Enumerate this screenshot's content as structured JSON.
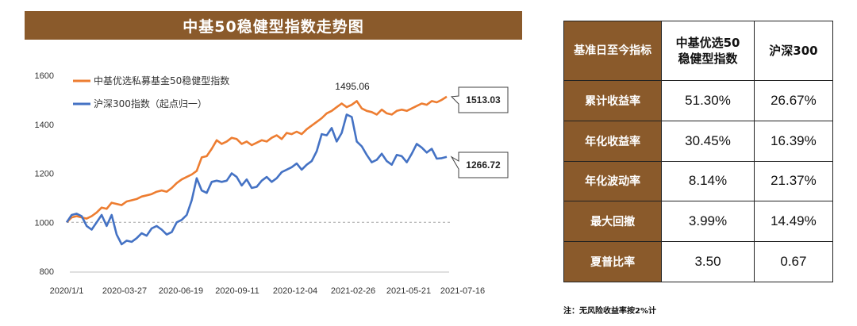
{
  "title": "中基50稳健型指数走势图",
  "chart_data": {
    "type": "line",
    "ylim": [
      800,
      1600
    ],
    "y_ticks": [
      "800",
      "1000",
      "1200",
      "1400",
      "1600"
    ],
    "x_ticks": [
      "2020/1/1",
      "2020-03-27",
      "2020-06-19",
      "2020-09-11",
      "2020-12-04",
      "2021-02-26",
      "2021-05-21",
      "2021-07-16"
    ],
    "grid": false,
    "legend_position": "top-left",
    "reference_line": 1000,
    "peak_label": "1495.06",
    "series": [
      {
        "name": "中基优选私募基金50稳健型指数",
        "color": "#ed7d31",
        "end_label": "1513.03",
        "values": [
          1000,
          1020,
          1025,
          1020,
          1015,
          1025,
          1040,
          1060,
          1055,
          1080,
          1075,
          1070,
          1085,
          1090,
          1095,
          1105,
          1110,
          1115,
          1125,
          1130,
          1125,
          1140,
          1160,
          1175,
          1185,
          1195,
          1210,
          1265,
          1270,
          1300,
          1335,
          1320,
          1330,
          1345,
          1340,
          1320,
          1330,
          1315,
          1325,
          1335,
          1330,
          1345,
          1355,
          1340,
          1365,
          1360,
          1370,
          1360,
          1380,
          1395,
          1410,
          1425,
          1445,
          1455,
          1470,
          1485,
          1470,
          1480,
          1495,
          1465,
          1455,
          1450,
          1440,
          1460,
          1445,
          1440,
          1455,
          1460,
          1455,
          1465,
          1475,
          1485,
          1480,
          1495,
          1490,
          1500,
          1513
        ]
      },
      {
        "name": "沪深300指数（起点归一）",
        "color": "#4472c4",
        "end_label": "1266.72",
        "values": [
          1000,
          1030,
          1035,
          1025,
          985,
          970,
          1000,
          1030,
          985,
          1030,
          950,
          910,
          925,
          920,
          935,
          955,
          945,
          975,
          985,
          970,
          950,
          960,
          1000,
          1010,
          1030,
          1090,
          1180,
          1130,
          1120,
          1165,
          1170,
          1165,
          1170,
          1200,
          1185,
          1150,
          1175,
          1140,
          1145,
          1170,
          1185,
          1165,
          1180,
          1205,
          1215,
          1225,
          1240,
          1215,
          1235,
          1250,
          1290,
          1360,
          1355,
          1385,
          1330,
          1365,
          1440,
          1430,
          1330,
          1310,
          1275,
          1245,
          1255,
          1280,
          1250,
          1235,
          1275,
          1270,
          1245,
          1280,
          1320,
          1305,
          1285,
          1300,
          1260,
          1262,
          1267
        ]
      }
    ]
  },
  "table": {
    "corner": "基准日至今指标",
    "columns": [
      "中基优选50稳健型指数",
      "沪深300"
    ],
    "rows": [
      {
        "label": "累计收益率",
        "v1": "51.30%",
        "v2": "26.67%"
      },
      {
        "label": "年化收益率",
        "v1": "30.45%",
        "v2": "16.39%"
      },
      {
        "label": "年化波动率",
        "v1": "8.14%",
        "v2": "21.37%"
      },
      {
        "label": "最大回撤",
        "v1": "3.99%",
        "v2": "14.49%"
      },
      {
        "label": "夏普比率",
        "v1": "3.50",
        "v2": "0.67"
      }
    ]
  },
  "note": "注：无风险收益率按2%计"
}
